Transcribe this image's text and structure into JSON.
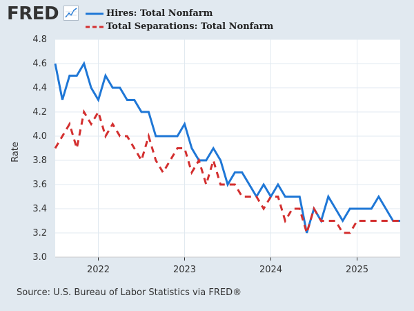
{
  "header": {
    "logo_text": "FRED",
    "logo_icon": "line-graph-icon"
  },
  "source": "Source: U.S. Bureau of Labor Statistics via FRED®",
  "colors": {
    "background": "#e1e9f0",
    "plot_background": "#ffffff",
    "grid": "#e1e9f0",
    "hires": "#1f77d6",
    "separations": "#d32f2f"
  },
  "chart_data": {
    "type": "line",
    "title": "",
    "xlabel": "",
    "ylabel": "Rate",
    "ylim": [
      3.0,
      4.8
    ],
    "yticks": [
      3.0,
      3.2,
      3.4,
      3.6,
      3.8,
      4.0,
      4.2,
      4.4,
      4.6,
      4.8
    ],
    "ytick_labels": [
      "3.0",
      "3.2",
      "3.4",
      "3.6",
      "3.8",
      "4.0",
      "4.2",
      "4.4",
      "4.6",
      "4.8"
    ],
    "xlim": [
      "2021-07",
      "2025-07"
    ],
    "xticks": [
      "2022",
      "2023",
      "2024",
      "2025"
    ],
    "x": [
      "2021-07",
      "2021-08",
      "2021-09",
      "2021-10",
      "2021-11",
      "2021-12",
      "2022-01",
      "2022-02",
      "2022-03",
      "2022-04",
      "2022-05",
      "2022-06",
      "2022-07",
      "2022-08",
      "2022-09",
      "2022-10",
      "2022-11",
      "2022-12",
      "2023-01",
      "2023-02",
      "2023-03",
      "2023-04",
      "2023-05",
      "2023-06",
      "2023-07",
      "2023-08",
      "2023-09",
      "2023-10",
      "2023-11",
      "2023-12",
      "2024-01",
      "2024-02",
      "2024-03",
      "2024-04",
      "2024-05",
      "2024-06",
      "2024-07",
      "2024-08",
      "2024-09",
      "2024-10",
      "2024-11",
      "2024-12",
      "2025-01",
      "2025-02",
      "2025-03",
      "2025-04",
      "2025-05",
      "2025-06",
      "2025-07"
    ],
    "series": [
      {
        "name": "Hires: Total Nonfarm",
        "style": "solid",
        "values": [
          4.6,
          4.3,
          4.5,
          4.5,
          4.6,
          4.4,
          4.3,
          4.5,
          4.4,
          4.4,
          4.3,
          4.3,
          4.2,
          4.2,
          4.0,
          4.0,
          4.0,
          4.0,
          4.1,
          3.9,
          3.8,
          3.8,
          3.9,
          3.8,
          3.6,
          3.7,
          3.7,
          3.6,
          3.5,
          3.6,
          3.5,
          3.6,
          3.5,
          3.5,
          3.5,
          3.2,
          3.4,
          3.3,
          3.5,
          3.4,
          3.3,
          3.4,
          3.4,
          3.4,
          3.4,
          3.5,
          3.4,
          3.3,
          3.3
        ]
      },
      {
        "name": "Total Separations: Total Nonfarm",
        "style": "dashed",
        "values": [
          3.9,
          4.0,
          4.1,
          3.9,
          4.2,
          4.1,
          4.2,
          4.0,
          4.1,
          4.0,
          4.0,
          3.9,
          3.8,
          4.0,
          3.8,
          3.7,
          3.8,
          3.9,
          3.9,
          3.7,
          3.8,
          3.6,
          3.8,
          3.6,
          3.6,
          3.6,
          3.5,
          3.5,
          3.5,
          3.4,
          3.5,
          3.5,
          3.3,
          3.4,
          3.4,
          3.2,
          3.4,
          3.3,
          3.3,
          3.3,
          3.2,
          3.2,
          3.3,
          3.3,
          3.3,
          3.3,
          3.3,
          3.3,
          3.3
        ]
      }
    ]
  }
}
